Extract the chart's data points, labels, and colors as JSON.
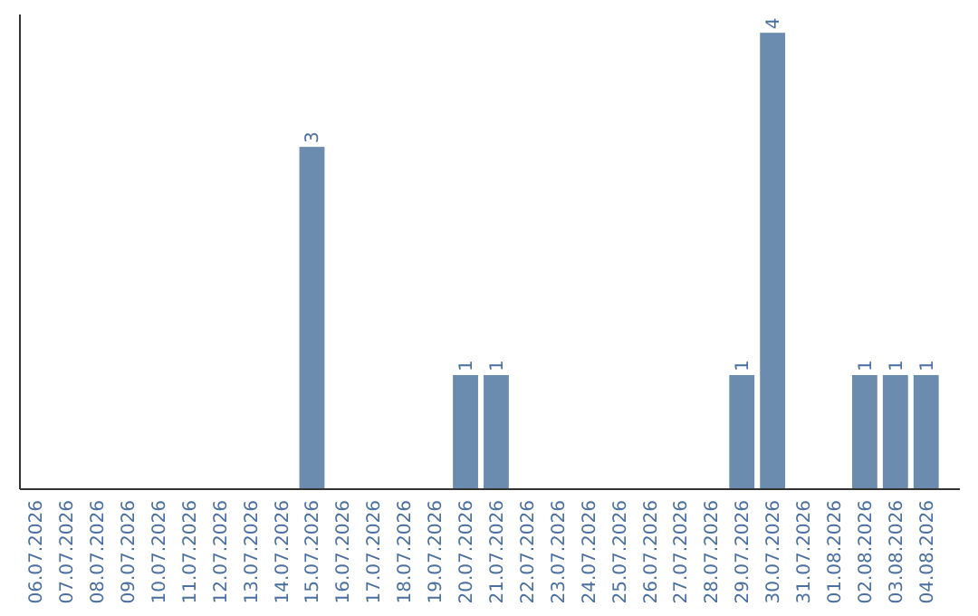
{
  "chart_data": {
    "type": "bar",
    "color": "#6b8cae",
    "categories": [
      "06.07.2026",
      "07.07.2026",
      "08.07.2026",
      "09.07.2026",
      "10.07.2026",
      "11.07.2026",
      "12.07.2026",
      "13.07.2026",
      "14.07.2026",
      "15.07.2026",
      "16.07.2026",
      "17.07.2026",
      "18.07.2026",
      "19.07.2026",
      "20.07.2026",
      "21.07.2026",
      "22.07.2026",
      "23.07.2026",
      "24.07.2026",
      "25.07.2026",
      "26.07.2026",
      "27.07.2026",
      "28.07.2026",
      "29.07.2026",
      "30.07.2026",
      "31.07.2026",
      "01.08.2026",
      "02.08.2026",
      "03.08.2026",
      "04.08.2026"
    ],
    "values": [
      0,
      0,
      0,
      0,
      0,
      0,
      0,
      0,
      0,
      3,
      0,
      0,
      0,
      0,
      1,
      1,
      0,
      0,
      0,
      0,
      0,
      0,
      0,
      1,
      4,
      0,
      0,
      1,
      1,
      1
    ],
    "value_labels": [
      null,
      null,
      null,
      null,
      null,
      null,
      null,
      null,
      null,
      "3",
      null,
      null,
      null,
      null,
      "1",
      "1",
      null,
      null,
      null,
      null,
      null,
      null,
      null,
      "1",
      "4",
      null,
      null,
      "1",
      "1",
      "1"
    ]
  }
}
